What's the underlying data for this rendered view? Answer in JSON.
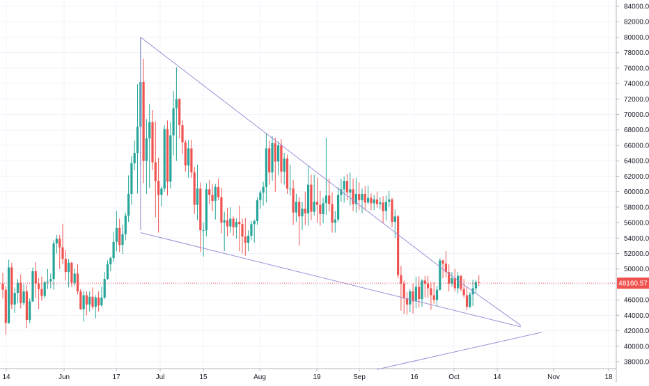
{
  "chart_data": {
    "type": "candlestick",
    "title": "",
    "xlabel": "",
    "ylabel": "",
    "ylim": [
      37000,
      85000
    ],
    "y_ticks": [
      "84000.00",
      "82000.00",
      "80000.00",
      "78000.00",
      "76000.00",
      "74000.00",
      "72000.00",
      "70000.00",
      "68000.00",
      "66000.00",
      "64000.00",
      "62000.00",
      "60000.00",
      "58000.00",
      "56000.00",
      "54000.00",
      "52000.00",
      "50000.00",
      "48000.00",
      "46000.00",
      "44000.00",
      "42000.00",
      "40000.00",
      "38000.00"
    ],
    "x_ticks": [
      "14",
      "Jun",
      "17",
      "Jul",
      "15",
      "Aug",
      "19",
      "Sep",
      "16",
      "Oct",
      "14",
      "Nov",
      "18"
    ],
    "grid": true,
    "current_price": 48160.57,
    "current_price_label": "48160.57",
    "candles": [
      [
        48100,
        49500,
        46200,
        47300
      ],
      [
        47300,
        47800,
        41500,
        43000
      ],
      [
        43000,
        51200,
        42900,
        50200
      ],
      [
        50200,
        50800,
        44800,
        45400
      ],
      [
        45400,
        47600,
        44300,
        46900
      ],
      [
        46900,
        48700,
        45600,
        48200
      ],
      [
        48200,
        49300,
        44900,
        45600
      ],
      [
        45600,
        48000,
        45300,
        47100
      ],
      [
        47100,
        47900,
        42300,
        43400
      ],
      [
        43400,
        46200,
        43000,
        45800
      ],
      [
        45800,
        50200,
        45700,
        49700
      ],
      [
        49700,
        50900,
        46300,
        48100
      ],
      [
        48100,
        48800,
        44800,
        47400
      ],
      [
        47400,
        49000,
        45900,
        46500
      ],
      [
        46500,
        48400,
        46200,
        48300
      ],
      [
        48300,
        50000,
        47400,
        48400
      ],
      [
        48400,
        49400,
        47500,
        48700
      ],
      [
        48700,
        53700,
        47300,
        53300
      ],
      [
        53300,
        54400,
        52000,
        53900
      ],
      [
        53900,
        54400,
        50000,
        52800
      ],
      [
        52800,
        55800,
        50600,
        51300
      ],
      [
        51300,
        52400,
        48500,
        49600
      ],
      [
        49600,
        51300,
        47600,
        50800
      ],
      [
        50800,
        50900,
        47700,
        48200
      ],
      [
        48200,
        50000,
        47800,
        49400
      ],
      [
        49400,
        50600,
        46700,
        47100
      ],
      [
        47100,
        47400,
        44700,
        44800
      ],
      [
        44800,
        47100,
        43200,
        46600
      ],
      [
        46600,
        47100,
        44000,
        45400
      ],
      [
        45400,
        47100,
        44500,
        46400
      ],
      [
        46400,
        47600,
        44800,
        45100
      ],
      [
        45100,
        46600,
        43600,
        46300
      ],
      [
        46300,
        47100,
        44500,
        45300
      ],
      [
        45300,
        47700,
        45100,
        46300
      ],
      [
        46300,
        49600,
        46100,
        48700
      ],
      [
        48700,
        51100,
        48600,
        50600
      ],
      [
        50600,
        51600,
        49700,
        51400
      ],
      [
        51400,
        54800,
        50900,
        53500
      ],
      [
        53500,
        57500,
        52300,
        55300
      ],
      [
        55300,
        56500,
        52200,
        53100
      ],
      [
        53100,
        55700,
        51900,
        54500
      ],
      [
        54500,
        57300,
        53700,
        56900
      ],
      [
        56900,
        62100,
        56100,
        59700
      ],
      [
        59700,
        64600,
        58300,
        63700
      ],
      [
        63700,
        66600,
        62800,
        65000
      ],
      [
        65000,
        73900,
        59800,
        68400
      ],
      [
        68400,
        80000,
        63300,
        74200
      ],
      [
        74200,
        77200,
        61100,
        64000
      ],
      [
        64000,
        69400,
        59700,
        66900
      ],
      [
        66900,
        71300,
        60500,
        69000
      ],
      [
        69000,
        70600,
        62800,
        63800
      ],
      [
        63800,
        69100,
        56700,
        61400
      ],
      [
        61400,
        64400,
        54700,
        59600
      ],
      [
        59600,
        60700,
        58100,
        60400
      ],
      [
        60400,
        68600,
        60000,
        68100
      ],
      [
        68100,
        69200,
        59500,
        61300
      ],
      [
        61300,
        69000,
        60400,
        67300
      ],
      [
        67300,
        73000,
        64700,
        70800
      ],
      [
        70800,
        76100,
        64000,
        72000
      ],
      [
        72000,
        72100,
        66900,
        68600
      ],
      [
        68600,
        69200,
        64900,
        66400
      ],
      [
        66400,
        66700,
        62600,
        63400
      ],
      [
        63400,
        66700,
        61800,
        65600
      ],
      [
        65600,
        66700,
        61800,
        62500
      ],
      [
        62500,
        63200,
        57100,
        58300
      ],
      [
        58300,
        63500,
        56300,
        60400
      ],
      [
        60400,
        61200,
        52200,
        55000
      ],
      [
        55000,
        56000,
        51600,
        55000
      ],
      [
        55000,
        61100,
        54200,
        60300
      ],
      [
        60300,
        61500,
        58400,
        59600
      ],
      [
        59600,
        61000,
        57500,
        58800
      ],
      [
        58800,
        61000,
        56400,
        60600
      ],
      [
        60600,
        61700,
        58900,
        59300
      ],
      [
        59300,
        60500,
        54600,
        56000
      ],
      [
        56000,
        57400,
        52300,
        56300
      ],
      [
        56300,
        57900,
        54200,
        55500
      ],
      [
        55500,
        58000,
        54700,
        56500
      ],
      [
        56500,
        56800,
        54300,
        55400
      ],
      [
        55400,
        56600,
        53900,
        56100
      ],
      [
        56100,
        58200,
        52300,
        55800
      ],
      [
        55800,
        56500,
        52000,
        54200
      ],
      [
        54200,
        56600,
        51700,
        53400
      ],
      [
        53400,
        55000,
        52300,
        54300
      ],
      [
        54300,
        56200,
        53700,
        55800
      ],
      [
        55800,
        56400,
        53400,
        56200
      ],
      [
        56200,
        59300,
        55700,
        58900
      ],
      [
        58900,
        60200,
        57800,
        59900
      ],
      [
        59900,
        61300,
        58200,
        60600
      ],
      [
        60600,
        67600,
        58600,
        65600
      ],
      [
        65600,
        66600,
        60900,
        62500
      ],
      [
        62500,
        67200,
        61400,
        66300
      ],
      [
        66300,
        67000,
        60000,
        63900
      ],
      [
        63900,
        66500,
        62200,
        66000
      ],
      [
        66000,
        66800,
        61100,
        62600
      ],
      [
        62600,
        65000,
        60900,
        64300
      ],
      [
        64300,
        64800,
        59700,
        60400
      ],
      [
        60400,
        63500,
        59500,
        60400
      ],
      [
        60400,
        61500,
        55700,
        57300
      ],
      [
        57300,
        59700,
        56100,
        58700
      ],
      [
        58700,
        59300,
        53000,
        56800
      ],
      [
        56800,
        58700,
        55000,
        57800
      ],
      [
        57800,
        60000,
        55700,
        57200
      ],
      [
        57200,
        63300,
        55600,
        60900
      ],
      [
        60900,
        62200,
        56300,
        57400
      ],
      [
        57400,
        62200,
        56900,
        58700
      ],
      [
        58700,
        61800,
        56000,
        58300
      ],
      [
        58300,
        60100,
        55600,
        57100
      ],
      [
        57100,
        59200,
        55900,
        58500
      ],
      [
        58500,
        67000,
        57000,
        59500
      ],
      [
        59500,
        61700,
        57400,
        58400
      ],
      [
        58400,
        59900,
        54700,
        56000
      ],
      [
        56000,
        57500,
        54700,
        56400
      ],
      [
        56400,
        60600,
        56100,
        59600
      ],
      [
        59600,
        61700,
        58700,
        60300
      ],
      [
        60300,
        62000,
        58600,
        61400
      ],
      [
        61400,
        62300,
        58900,
        59900
      ],
      [
        59900,
        62500,
        58200,
        60300
      ],
      [
        60300,
        61700,
        57500,
        58400
      ],
      [
        58400,
        61800,
        57300,
        59700
      ],
      [
        59700,
        61200,
        57600,
        58900
      ],
      [
        58900,
        60400,
        57200,
        59700
      ],
      [
        59700,
        60700,
        57600,
        58600
      ],
      [
        58600,
        60800,
        58400,
        59200
      ],
      [
        59200,
        59800,
        57600,
        58500
      ],
      [
        58500,
        59600,
        57600,
        59000
      ],
      [
        59000,
        60000,
        57900,
        58400
      ],
      [
        58400,
        59300,
        57700,
        58600
      ],
      [
        58600,
        59400,
        55900,
        57500
      ],
      [
        57500,
        59500,
        56300,
        58700
      ],
      [
        58700,
        60100,
        58000,
        59000
      ],
      [
        59000,
        59200,
        55400,
        56100
      ],
      [
        56100,
        57700,
        54000,
        56800
      ],
      [
        56800,
        57000,
        48800,
        49200
      ],
      [
        49200,
        50400,
        44600,
        48100
      ],
      [
        48100,
        48500,
        44200,
        46200
      ],
      [
        46200,
        47000,
        44100,
        45400
      ],
      [
        45400,
        47400,
        44400,
        47100
      ],
      [
        47100,
        48100,
        44200,
        45800
      ],
      [
        45800,
        49000,
        44900,
        47700
      ],
      [
        47700,
        49000,
        45000,
        46100
      ],
      [
        46100,
        48700,
        45100,
        48500
      ],
      [
        48500,
        49100,
        46300,
        48100
      ],
      [
        48100,
        49100,
        46300,
        47500
      ],
      [
        47500,
        48300,
        44700,
        46600
      ],
      [
        46600,
        48300,
        45500,
        46000
      ],
      [
        46000,
        47800,
        45200,
        47300
      ],
      [
        47300,
        51400,
        47200,
        51100
      ],
      [
        51100,
        51200,
        48800,
        50700
      ],
      [
        50700,
        52300,
        48900,
        49600
      ],
      [
        49600,
        50600,
        47100,
        48100
      ],
      [
        48100,
        49600,
        47700,
        48800
      ],
      [
        48800,
        50000,
        47100,
        47500
      ],
      [
        47500,
        49600,
        46800,
        49100
      ],
      [
        49100,
        49200,
        47100,
        47400
      ],
      [
        47400,
        48700,
        46300,
        46600
      ],
      [
        46600,
        47700,
        44700,
        45100
      ],
      [
        45100,
        47000,
        44900,
        46700
      ],
      [
        46700,
        48600,
        45200,
        47500
      ],
      [
        47500,
        48600,
        46800,
        48300
      ],
      [
        48300,
        49200,
        47800,
        48200
      ]
    ],
    "trendlines": [
      {
        "from": {
          "idx": 46,
          "price": 80000
        },
        "to": {
          "idx": 152,
          "price": 48500
        }
      },
      {
        "from": {
          "idx": 46,
          "price": 80000
        },
        "to": {
          "idx": 46,
          "price": 55000
        }
      },
      {
        "from": {
          "idx": 46,
          "price": 54700
        },
        "to": {
          "idx": 173,
          "price": 42500
        }
      },
      {
        "from": {
          "idx": 152,
          "price": 48500
        },
        "to": {
          "idx": 173,
          "price": 42700
        }
      },
      {
        "from": {
          "idx": 125,
          "price": 37000
        },
        "to": {
          "idx": 180,
          "price": 41800
        }
      }
    ],
    "colors": {
      "up": "#26a69a",
      "down": "#ef5350",
      "trendline": "#9c8fd6",
      "grid": "#f0f3fa",
      "axis_text": "#131722",
      "price_line": "#ef5350"
    }
  }
}
